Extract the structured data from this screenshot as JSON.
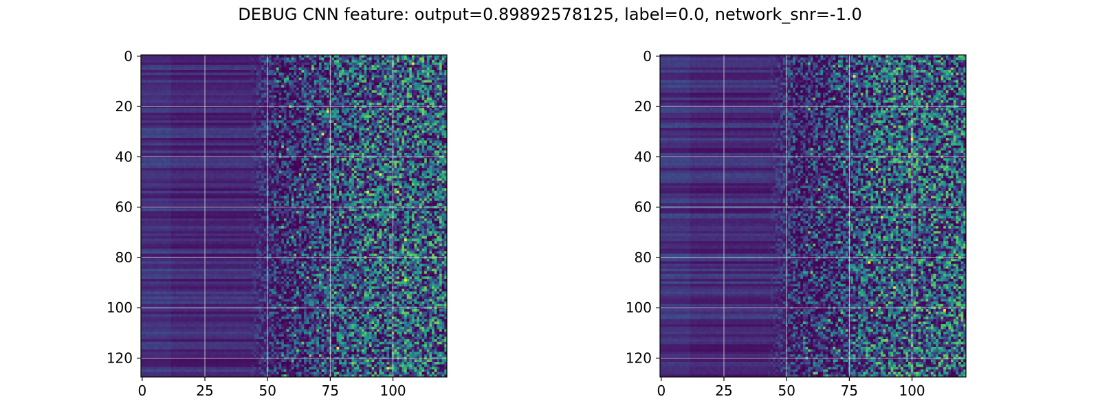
{
  "figure": {
    "title": "DEBUG CNN feature: output=0.89892578125, label=0.0, network_snr=-1.0"
  },
  "chart_data": [
    {
      "type": "heatmap",
      "title": "",
      "xlabel": "",
      "ylabel": "",
      "colormap": "viridis",
      "grid": true,
      "rows": 128,
      "cols": 122,
      "xlim": [
        -0.5,
        121.5
      ],
      "ylim": [
        127.5,
        -0.5
      ],
      "xticks": [
        0,
        25,
        50,
        75,
        100
      ],
      "yticks": [
        0,
        20,
        40,
        60,
        80,
        100,
        120
      ],
      "description_values": {
        "low_band_cols": [
          0,
          50
        ],
        "noisy_band_cols": [
          50,
          121
        ],
        "value_range": [
          0,
          1
        ]
      },
      "hotspots": [
        {
          "row": 54,
          "col": 90
        },
        {
          "row": 54,
          "col": 102
        },
        {
          "row": 116,
          "col": 78
        },
        {
          "row": 124,
          "col": 98
        },
        {
          "row": 73,
          "col": 105
        },
        {
          "row": 31,
          "col": 72
        },
        {
          "row": 22,
          "col": 74
        },
        {
          "row": 47,
          "col": 95
        },
        {
          "row": 89,
          "col": 105
        },
        {
          "row": 3,
          "col": 108
        }
      ],
      "seed": 11
    },
    {
      "type": "heatmap",
      "title": "",
      "xlabel": "",
      "ylabel": "",
      "colormap": "viridis",
      "grid": true,
      "rows": 128,
      "cols": 122,
      "xlim": [
        -0.5,
        121.5
      ],
      "ylim": [
        127.5,
        -0.5
      ],
      "xticks": [
        0,
        25,
        50,
        75,
        100
      ],
      "yticks": [
        0,
        20,
        40,
        60,
        80,
        100,
        120
      ],
      "description_values": {
        "low_band_cols": [
          0,
          50
        ],
        "noisy_band_cols": [
          50,
          121
        ],
        "value_range": [
          0,
          1
        ]
      },
      "hotspots": [
        {
          "row": 101,
          "col": 84
        },
        {
          "row": 101,
          "col": 113
        },
        {
          "row": 53,
          "col": 89
        },
        {
          "row": 64,
          "col": 88
        },
        {
          "row": 82,
          "col": 83
        },
        {
          "row": 8,
          "col": 77
        },
        {
          "row": 92,
          "col": 93
        },
        {
          "row": 45,
          "col": 84
        },
        {
          "row": 33,
          "col": 100
        },
        {
          "row": 14,
          "col": 97
        }
      ],
      "seed": 29
    }
  ]
}
